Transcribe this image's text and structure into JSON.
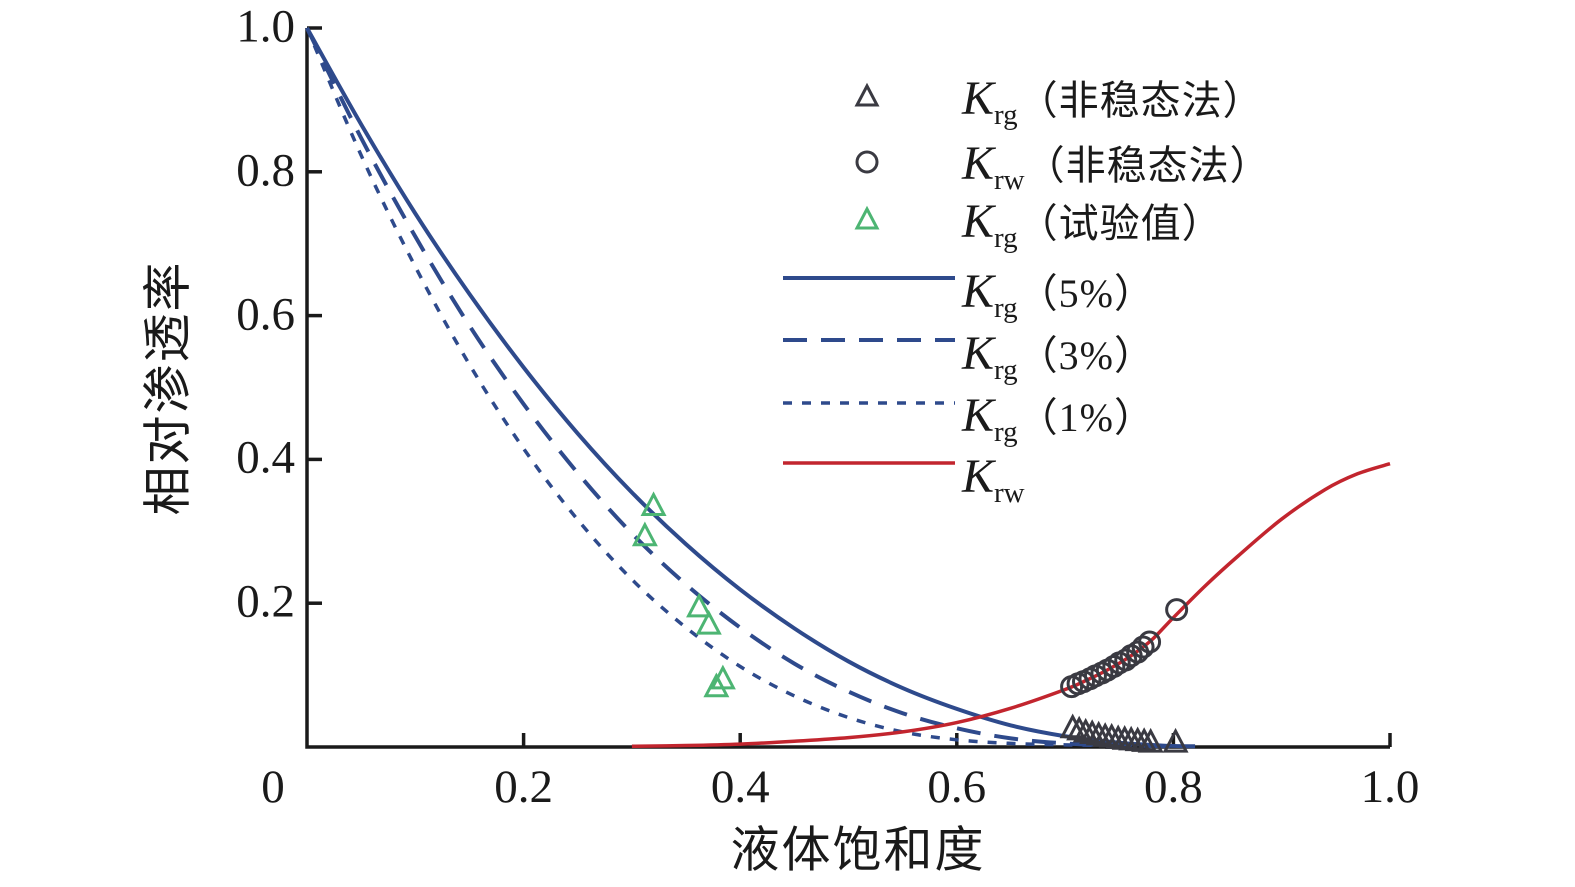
{
  "chart_data": {
    "type": "line+scatter",
    "title": "",
    "xlabel": "液体饱和度",
    "ylabel": "相对渗透率",
    "xlim": [
      0,
      1.0
    ],
    "ylim": [
      0,
      1.0
    ],
    "grid": false,
    "legend_position": "upper-right-inside",
    "xticks": [
      {
        "v": 0,
        "label": "0"
      },
      {
        "v": 0.2,
        "label": "0.2"
      },
      {
        "v": 0.4,
        "label": "0.4"
      },
      {
        "v": 0.6,
        "label": "0.6"
      },
      {
        "v": 0.8,
        "label": "0.8"
      },
      {
        "v": 1.0,
        "label": "1.0"
      }
    ],
    "yticks": [
      {
        "v": 0.2,
        "label": "0.2"
      },
      {
        "v": 0.4,
        "label": "0.4"
      },
      {
        "v": 0.6,
        "label": "0.6"
      },
      {
        "v": 0.8,
        "label": "0.8"
      },
      {
        "v": 1.0,
        "label": "1.0"
      }
    ],
    "colors": {
      "blue": "#2e4a8c",
      "red": "#c2252e",
      "green": "#4db573",
      "dark": "#3a3a42",
      "axis": "#1a1a1a"
    },
    "lines": [
      {
        "id": "krg5",
        "label": {
          "k": "K",
          "sub": "rg",
          "rest": "（5%）"
        },
        "color": "blue",
        "dash": "solid",
        "width": 4,
        "points": [
          [
            0,
            1.0
          ],
          [
            0.05,
            0.866
          ],
          [
            0.1,
            0.742
          ],
          [
            0.15,
            0.63
          ],
          [
            0.2,
            0.528
          ],
          [
            0.25,
            0.436
          ],
          [
            0.3,
            0.354
          ],
          [
            0.35,
            0.282
          ],
          [
            0.4,
            0.219
          ],
          [
            0.45,
            0.165
          ],
          [
            0.5,
            0.119
          ],
          [
            0.55,
            0.082
          ],
          [
            0.6,
            0.053
          ],
          [
            0.65,
            0.03
          ],
          [
            0.7,
            0.015
          ],
          [
            0.75,
            0.006
          ],
          [
            0.79,
            0.002
          ],
          [
            0.82,
            0.001
          ]
        ]
      },
      {
        "id": "krg3",
        "label": {
          "k": "K",
          "sub": "rg",
          "rest": "（3%）"
        },
        "color": "blue",
        "dash": "long",
        "width": 4,
        "points": [
          [
            0,
            1.0
          ],
          [
            0.05,
            0.847
          ],
          [
            0.1,
            0.71
          ],
          [
            0.15,
            0.586
          ],
          [
            0.2,
            0.477
          ],
          [
            0.25,
            0.381
          ],
          [
            0.3,
            0.297
          ],
          [
            0.35,
            0.226
          ],
          [
            0.4,
            0.166
          ],
          [
            0.45,
            0.116
          ],
          [
            0.5,
            0.077
          ],
          [
            0.55,
            0.047
          ],
          [
            0.6,
            0.026
          ],
          [
            0.65,
            0.012
          ],
          [
            0.7,
            0.005
          ],
          [
            0.75,
            0.002
          ],
          [
            0.8,
            0.001
          ]
        ]
      },
      {
        "id": "krg1",
        "label": {
          "k": "K",
          "sub": "rg",
          "rest": "（1%）"
        },
        "color": "blue",
        "dash": "short",
        "width": 3.5,
        "points": [
          [
            0,
            1.0
          ],
          [
            0.05,
            0.823
          ],
          [
            0.1,
            0.668
          ],
          [
            0.15,
            0.532
          ],
          [
            0.2,
            0.415
          ],
          [
            0.25,
            0.316
          ],
          [
            0.3,
            0.233
          ],
          [
            0.35,
            0.166
          ],
          [
            0.4,
            0.112
          ],
          [
            0.45,
            0.071
          ],
          [
            0.5,
            0.041
          ],
          [
            0.55,
            0.021
          ],
          [
            0.6,
            0.01
          ],
          [
            0.65,
            0.005
          ],
          [
            0.7,
            0.003
          ],
          [
            0.75,
            0.002
          ],
          [
            0.79,
            0.001
          ]
        ]
      },
      {
        "id": "krw",
        "label": {
          "k": "K",
          "sub": "rw",
          "rest": ""
        },
        "color": "red",
        "dash": "solid",
        "width": 3.5,
        "points": [
          [
            0.3,
            0.001
          ],
          [
            0.35,
            0.002
          ],
          [
            0.4,
            0.004
          ],
          [
            0.45,
            0.008
          ],
          [
            0.5,
            0.013
          ],
          [
            0.55,
            0.021
          ],
          [
            0.6,
            0.034
          ],
          [
            0.65,
            0.054
          ],
          [
            0.7,
            0.08
          ],
          [
            0.72,
            0.093
          ],
          [
            0.74,
            0.108
          ],
          [
            0.76,
            0.126
          ],
          [
            0.78,
            0.149
          ],
          [
            0.8,
            0.18
          ],
          [
            0.83,
            0.225
          ],
          [
            0.86,
            0.266
          ],
          [
            0.9,
            0.317
          ],
          [
            0.94,
            0.358
          ],
          [
            0.97,
            0.38
          ],
          [
            1.0,
            0.394
          ]
        ]
      }
    ],
    "scatter": [
      {
        "id": "krg-unsteady",
        "label": {
          "k": "K",
          "sub": "rg",
          "rest": "（非稳态法）"
        },
        "marker": "triangle",
        "color": "dark",
        "points": [
          [
            0.707,
            0.026
          ],
          [
            0.713,
            0.023
          ],
          [
            0.719,
            0.02
          ],
          [
            0.725,
            0.018
          ],
          [
            0.731,
            0.016
          ],
          [
            0.737,
            0.014
          ],
          [
            0.743,
            0.013
          ],
          [
            0.749,
            0.011
          ],
          [
            0.755,
            0.01
          ],
          [
            0.761,
            0.009
          ],
          [
            0.767,
            0.008
          ],
          [
            0.773,
            0.007
          ],
          [
            0.779,
            0.006
          ],
          [
            0.802,
            0.006
          ]
        ]
      },
      {
        "id": "krw-unsteady",
        "label": {
          "k": "K",
          "sub": "rw",
          "rest": "（非稳态法）"
        },
        "marker": "circle",
        "color": "dark",
        "points": [
          [
            0.706,
            0.084
          ],
          [
            0.712,
            0.088
          ],
          [
            0.717,
            0.091
          ],
          [
            0.723,
            0.095
          ],
          [
            0.728,
            0.099
          ],
          [
            0.734,
            0.103
          ],
          [
            0.739,
            0.107
          ],
          [
            0.745,
            0.112
          ],
          [
            0.75,
            0.117
          ],
          [
            0.756,
            0.121
          ],
          [
            0.761,
            0.127
          ],
          [
            0.767,
            0.132
          ],
          [
            0.772,
            0.139
          ],
          [
            0.778,
            0.146
          ],
          [
            0.803,
            0.191
          ]
        ]
      },
      {
        "id": "krg-test",
        "label": {
          "k": "K",
          "sub": "rg",
          "rest": "（试验值）"
        },
        "marker": "triangle",
        "color": "green",
        "points": [
          [
            0.32,
            0.335
          ],
          [
            0.312,
            0.293
          ],
          [
            0.362,
            0.194
          ],
          [
            0.371,
            0.17
          ],
          [
            0.384,
            0.094
          ],
          [
            0.378,
            0.083
          ]
        ]
      }
    ],
    "legend_order": [
      "krg-unsteady",
      "krw-unsteady",
      "krg-test",
      "krg5",
      "krg3",
      "krg1",
      "krw"
    ]
  }
}
